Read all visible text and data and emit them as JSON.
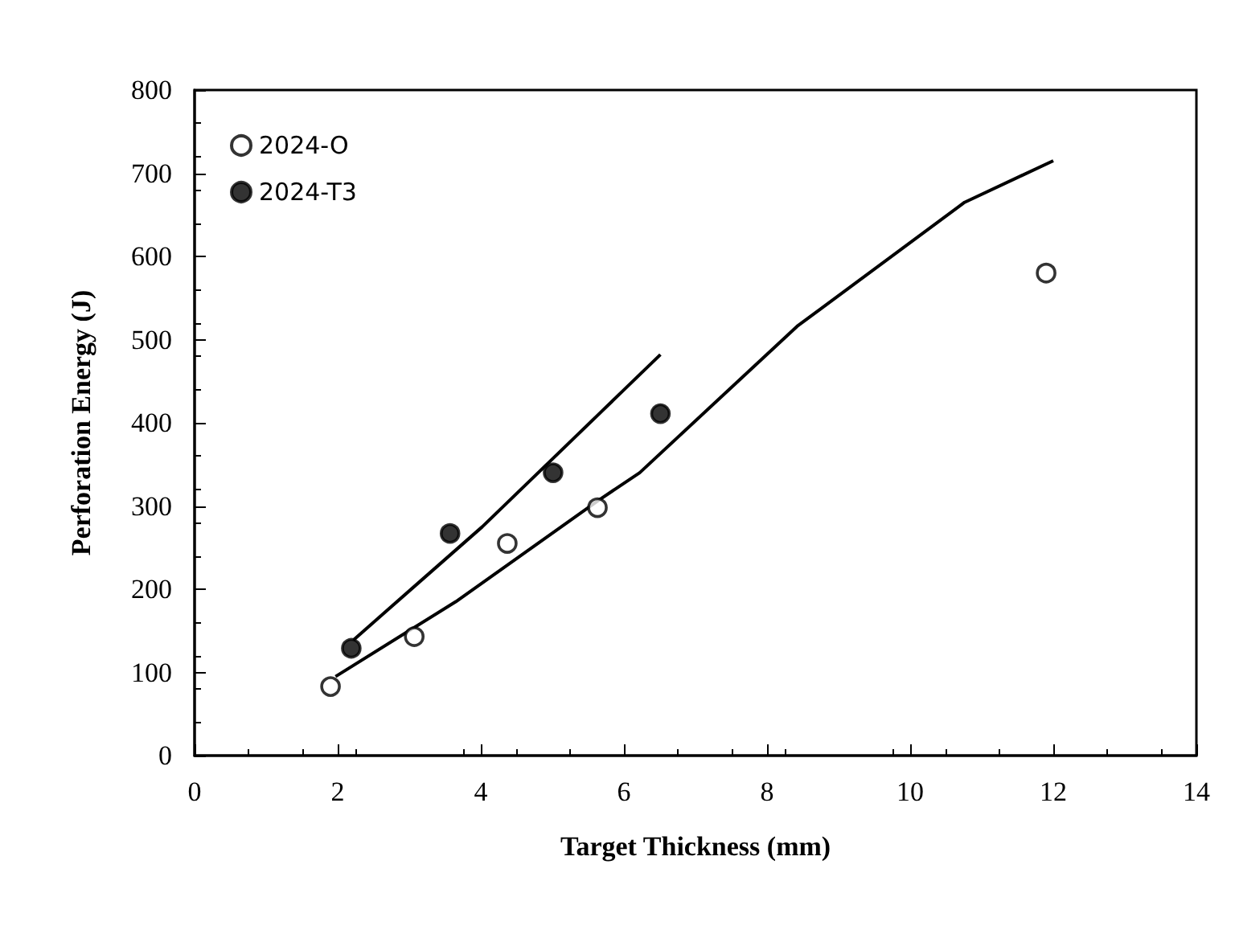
{
  "chart_data": {
    "type": "scatter",
    "xlabel": "Target Thickness (mm)",
    "ylabel": "Perforation Energy (J)",
    "xlim": [
      0,
      14
    ],
    "xticks": [
      0,
      2,
      4,
      6,
      8,
      10,
      12,
      14
    ],
    "ylim": [
      0,
      800
    ],
    "yticks": [
      0,
      100,
      200,
      300,
      400,
      500,
      600,
      700,
      800
    ],
    "grid": false,
    "legend": "top left",
    "marker": "circle",
    "series": [
      {
        "name": "2024-O",
        "color": "#ffffff",
        "x": [
          1.9,
          3.07,
          4.37,
          5.63,
          11.9
        ],
        "values": [
          83,
          143,
          255,
          298,
          580
        ]
      },
      {
        "name": "2024-T3",
        "color": "#000000",
        "x": [
          2.19,
          3.57,
          5.01,
          6.51
        ],
        "values": [
          129,
          267,
          340,
          411
        ]
      },
      {
        "type": "line",
        "marker": "none",
        "color": "#000000",
        "x": [
          2.22,
          4.02,
          6.51
        ],
        "values": [
          139,
          275,
          482
        ]
      },
      {
        "type": "line",
        "marker": "none",
        "color": "#000000",
        "x": [
          1.97,
          3.65,
          5.63,
          6.22,
          8.42,
          10.76,
          12.0
        ],
        "values": [
          95,
          185,
          306,
          340,
          516,
          665,
          715
        ]
      }
    ]
  }
}
